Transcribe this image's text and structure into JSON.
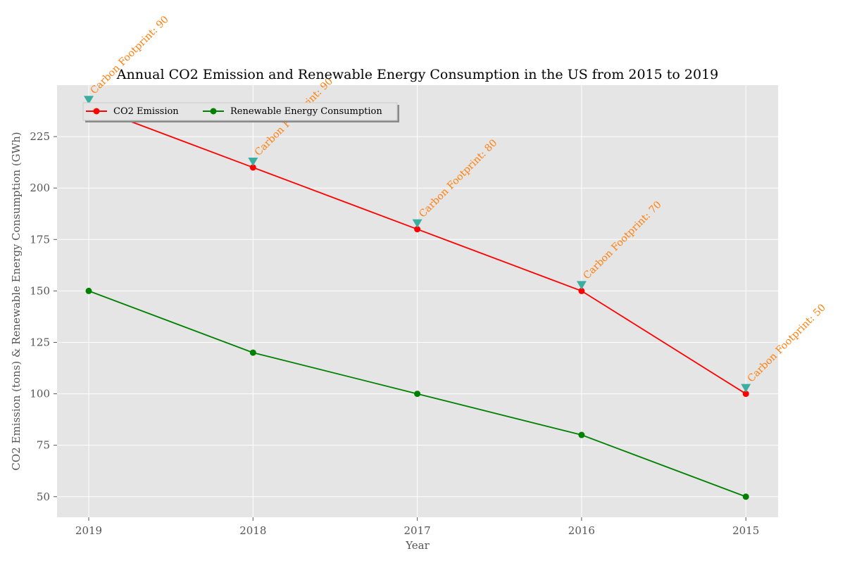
{
  "chart_data": {
    "type": "line",
    "title": "Annual CO2 Emission and Renewable Energy Consumption in the US from 2015 to 2019",
    "xlabel": "Year",
    "ylabel": "CO2 Emission (tons) & Renewable Energy Consumption (GWh)",
    "categories": [
      "2019",
      "2018",
      "2017",
      "2016",
      "2015"
    ],
    "ylim": [
      40,
      250
    ],
    "yticks": [
      50,
      75,
      100,
      125,
      150,
      175,
      200,
      225
    ],
    "grid": true,
    "legend_placement": "upper-left",
    "series": [
      {
        "name": "CO2 Emission",
        "color": "#ff0000",
        "values": [
          240,
          210,
          180,
          150,
          100
        ]
      },
      {
        "name": "Renewable Energy Consumption",
        "color": "#008000",
        "values": [
          150,
          120,
          100,
          80,
          50
        ]
      }
    ],
    "annotations": {
      "marker_color": "#3aafa0",
      "text_color": "#ff7f0e",
      "labels": [
        "Carbon Footprint: 90",
        "Carbon Footprint: 90",
        "Carbon Footprint: 80",
        "Carbon Footprint: 70",
        "Carbon Footprint: 50"
      ]
    },
    "background": "#e5e5e5",
    "grid_color": "#ffffff"
  }
}
